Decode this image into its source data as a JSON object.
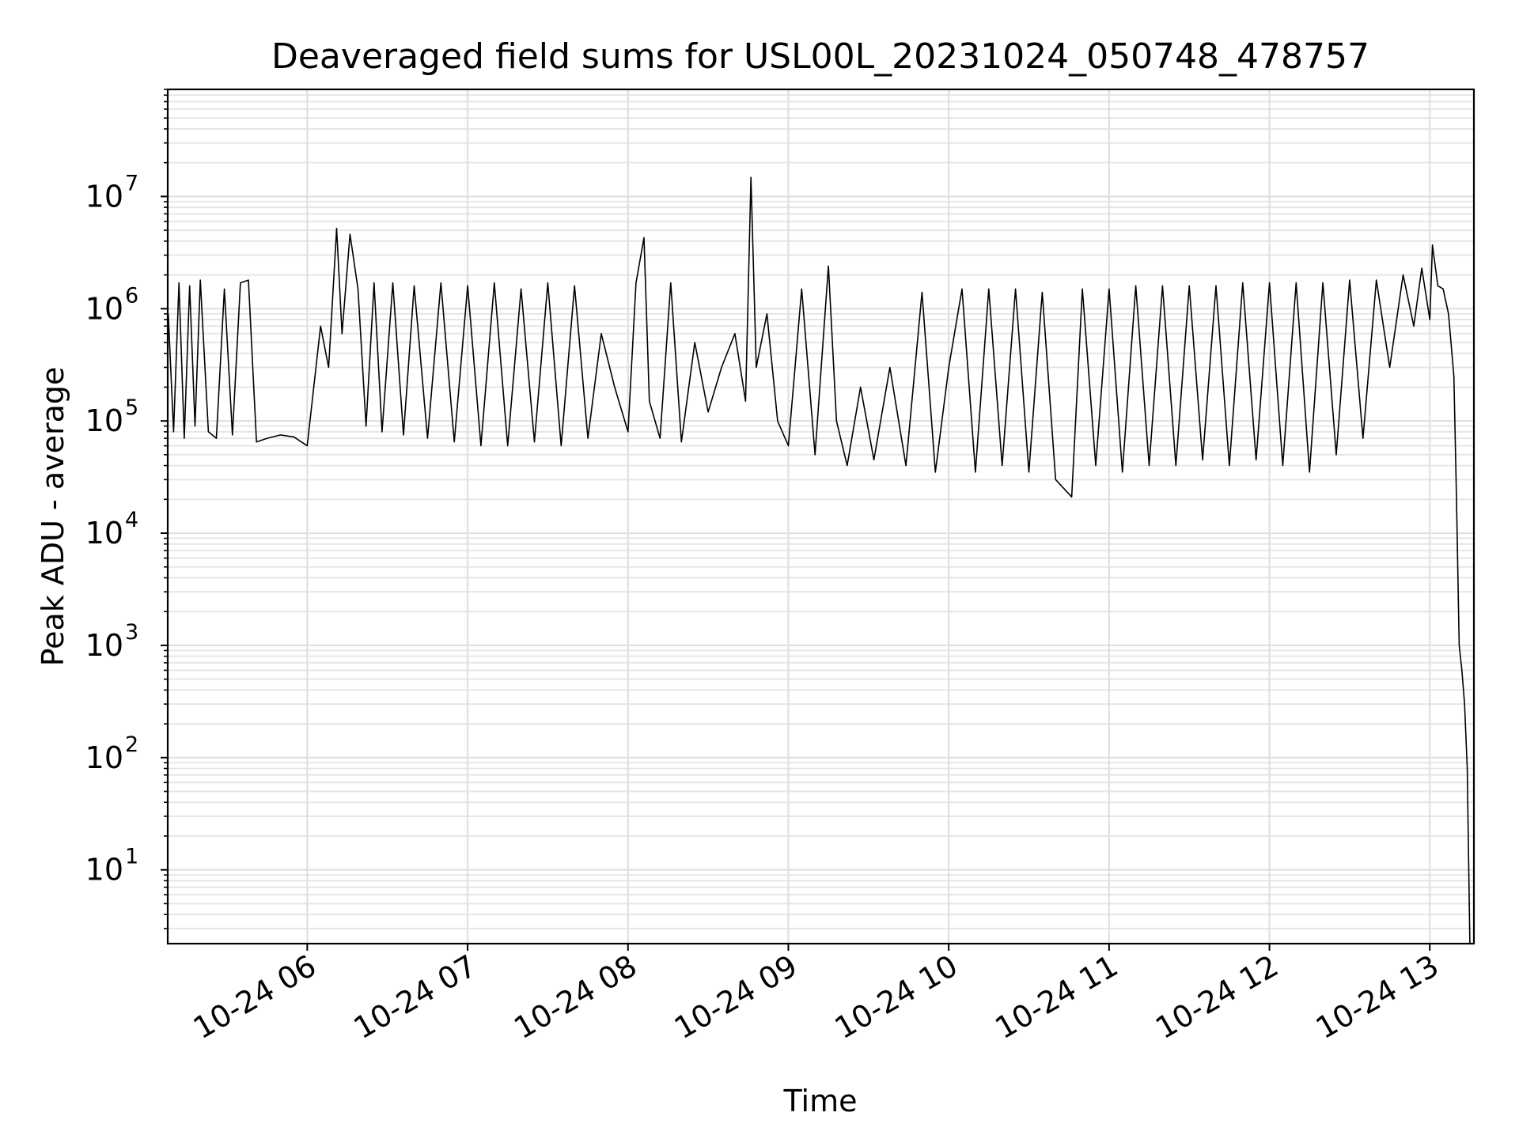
{
  "chart_data": {
    "type": "line",
    "title": "Deaveraged field sums for USL00L_20231024_050748_478757",
    "xlabel": "Time",
    "ylabel": "Peak ADU - average",
    "yscale": "log",
    "ylim": [
      2.2,
      90000000
    ],
    "xlim": [
      "10-24 05:07:48",
      "10-24 13:16:30"
    ],
    "grid": true,
    "x_ticks": [
      {
        "value": "10-24 06:00",
        "label": "10-24 06"
      },
      {
        "value": "10-24 07:00",
        "label": "10-24 07"
      },
      {
        "value": "10-24 08:00",
        "label": "10-24 08"
      },
      {
        "value": "10-24 09:00",
        "label": "10-24 09"
      },
      {
        "value": "10-24 10:00",
        "label": "10-24 10"
      },
      {
        "value": "10-24 11:00",
        "label": "10-24 11"
      },
      {
        "value": "10-24 12:00",
        "label": "10-24 12"
      },
      {
        "value": "10-24 13:00",
        "label": "10-24 13"
      }
    ],
    "y_ticks": [
      {
        "value": 10,
        "base": "10",
        "exp": "1"
      },
      {
        "value": 100,
        "base": "10",
        "exp": "2"
      },
      {
        "value": 1000,
        "base": "10",
        "exp": "3"
      },
      {
        "value": 10000,
        "base": "10",
        "exp": "4"
      },
      {
        "value": 100000,
        "base": "10",
        "exp": "5"
      },
      {
        "value": 1000000,
        "base": "10",
        "exp": "6"
      },
      {
        "value": 10000000,
        "base": "10",
        "exp": "7"
      }
    ],
    "series": [
      {
        "color": "#000000",
        "points": [
          [
            "10-24 05:08",
            900000
          ],
          [
            "10-24 05:10",
            80000
          ],
          [
            "10-24 05:12",
            1700000
          ],
          [
            "10-24 05:14",
            70000
          ],
          [
            "10-24 05:16",
            1600000
          ],
          [
            "10-24 05:18",
            90000
          ],
          [
            "10-24 05:20",
            1800000
          ],
          [
            "10-24 05:23",
            80000
          ],
          [
            "10-24 05:26",
            70000
          ],
          [
            "10-24 05:29",
            1500000
          ],
          [
            "10-24 05:32",
            75000
          ],
          [
            "10-24 05:35",
            1700000
          ],
          [
            "10-24 05:38",
            1800000
          ],
          [
            "10-24 05:41",
            65000
          ],
          [
            "10-24 05:45",
            70000
          ],
          [
            "10-24 05:50",
            75000
          ],
          [
            "10-24 05:55",
            72000
          ],
          [
            "10-24 06:00",
            60000
          ],
          [
            "10-24 06:05",
            700000
          ],
          [
            "10-24 06:08",
            300000
          ],
          [
            "10-24 06:11",
            5200000
          ],
          [
            "10-24 06:13",
            600000
          ],
          [
            "10-24 06:16",
            4600000
          ],
          [
            "10-24 06:19",
            1500000
          ],
          [
            "10-24 06:22",
            90000
          ],
          [
            "10-24 06:25",
            1700000
          ],
          [
            "10-24 06:28",
            80000
          ],
          [
            "10-24 06:32",
            1700000
          ],
          [
            "10-24 06:36",
            75000
          ],
          [
            "10-24 06:40",
            1600000
          ],
          [
            "10-24 06:45",
            70000
          ],
          [
            "10-24 06:50",
            1700000
          ],
          [
            "10-24 06:55",
            65000
          ],
          [
            "10-24 07:00",
            1600000
          ],
          [
            "10-24 07:05",
            60000
          ],
          [
            "10-24 07:10",
            1700000
          ],
          [
            "10-24 07:15",
            60000
          ],
          [
            "10-24 07:20",
            1500000
          ],
          [
            "10-24 07:25",
            65000
          ],
          [
            "10-24 07:30",
            1700000
          ],
          [
            "10-24 07:35",
            60000
          ],
          [
            "10-24 07:40",
            1600000
          ],
          [
            "10-24 07:45",
            70000
          ],
          [
            "10-24 07:50",
            600000
          ],
          [
            "10-24 07:55",
            200000
          ],
          [
            "10-24 08:00",
            80000
          ],
          [
            "10-24 08:03",
            1700000
          ],
          [
            "10-24 08:06",
            4300000
          ],
          [
            "10-24 08:08",
            150000
          ],
          [
            "10-24 08:12",
            70000
          ],
          [
            "10-24 08:16",
            1700000
          ],
          [
            "10-24 08:20",
            65000
          ],
          [
            "10-24 08:25",
            500000
          ],
          [
            "10-24 08:30",
            120000
          ],
          [
            "10-24 08:35",
            300000
          ],
          [
            "10-24 08:40",
            600000
          ],
          [
            "10-24 08:44",
            150000
          ],
          [
            "10-24 08:46",
            14800000
          ],
          [
            "10-24 08:48",
            300000
          ],
          [
            "10-24 08:52",
            900000
          ],
          [
            "10-24 08:56",
            100000
          ],
          [
            "10-24 09:00",
            60000
          ],
          [
            "10-24 09:05",
            1500000
          ],
          [
            "10-24 09:10",
            50000
          ],
          [
            "10-24 09:15",
            2400000
          ],
          [
            "10-24 09:18",
            100000
          ],
          [
            "10-24 09:22",
            40000
          ],
          [
            "10-24 09:27",
            200000
          ],
          [
            "10-24 09:32",
            45000
          ],
          [
            "10-24 09:38",
            300000
          ],
          [
            "10-24 09:44",
            40000
          ],
          [
            "10-24 09:50",
            1400000
          ],
          [
            "10-24 09:55",
            35000
          ],
          [
            "10-24 10:00",
            300000
          ],
          [
            "10-24 10:05",
            1500000
          ],
          [
            "10-24 10:10",
            35000
          ],
          [
            "10-24 10:15",
            1500000
          ],
          [
            "10-24 10:20",
            40000
          ],
          [
            "10-24 10:25",
            1500000
          ],
          [
            "10-24 10:30",
            35000
          ],
          [
            "10-24 10:35",
            1400000
          ],
          [
            "10-24 10:40",
            30000
          ],
          [
            "10-24 10:46",
            21000
          ],
          [
            "10-24 10:50",
            1500000
          ],
          [
            "10-24 10:55",
            40000
          ],
          [
            "10-24 11:00",
            1500000
          ],
          [
            "10-24 11:05",
            35000
          ],
          [
            "10-24 11:10",
            1600000
          ],
          [
            "10-24 11:15",
            40000
          ],
          [
            "10-24 11:20",
            1600000
          ],
          [
            "10-24 11:25",
            40000
          ],
          [
            "10-24 11:30",
            1600000
          ],
          [
            "10-24 11:35",
            45000
          ],
          [
            "10-24 11:40",
            1600000
          ],
          [
            "10-24 11:45",
            40000
          ],
          [
            "10-24 11:50",
            1700000
          ],
          [
            "10-24 11:55",
            45000
          ],
          [
            "10-24 12:00",
            1700000
          ],
          [
            "10-24 12:05",
            40000
          ],
          [
            "10-24 12:10",
            1700000
          ],
          [
            "10-24 12:15",
            35000
          ],
          [
            "10-24 12:20",
            1700000
          ],
          [
            "10-24 12:25",
            50000
          ],
          [
            "10-24 12:30",
            1800000
          ],
          [
            "10-24 12:35",
            70000
          ],
          [
            "10-24 12:40",
            1800000
          ],
          [
            "10-24 12:45",
            300000
          ],
          [
            "10-24 12:50",
            2000000
          ],
          [
            "10-24 12:54",
            700000
          ],
          [
            "10-24 12:57",
            2300000
          ],
          [
            "10-24 13:00",
            800000
          ],
          [
            "10-24 13:01",
            3700000
          ],
          [
            "10-24 13:03",
            1600000
          ],
          [
            "10-24 13:05",
            1500000
          ],
          [
            "10-24 13:07",
            900000
          ],
          [
            "10-24 13:09",
            250000
          ],
          [
            "10-24 13:10",
            20000
          ],
          [
            "10-24 13:11",
            1000
          ],
          [
            "10-24 13:12",
            600
          ],
          [
            "10-24 13:13",
            300
          ],
          [
            "10-24 13:14",
            80
          ],
          [
            "10-24 13:15",
            2.2
          ]
        ]
      }
    ]
  }
}
